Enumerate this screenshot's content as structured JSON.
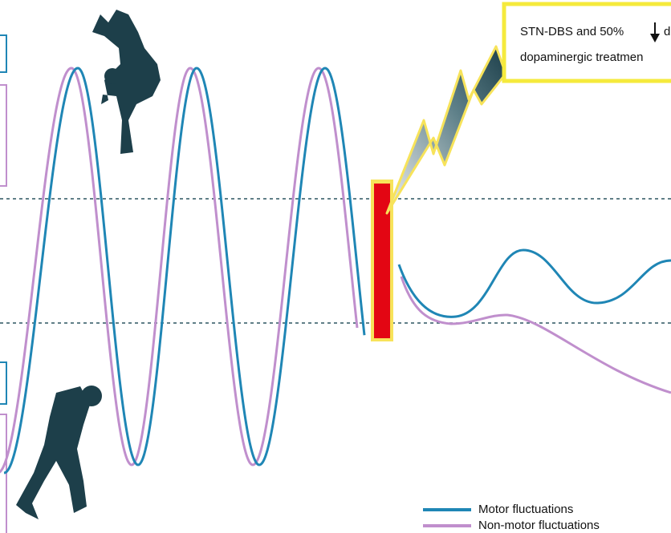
{
  "annotation": {
    "line1": "STN-DBS and 50%",
    "line1_tail": "d",
    "line2": "dopaminergic treatmen"
  },
  "legend": {
    "items": [
      {
        "label": "Motor fluctuations",
        "color": "#1f86b5"
      },
      {
        "label": "Non-motor fluctuations",
        "color": "#c08fcd"
      }
    ]
  }
}
